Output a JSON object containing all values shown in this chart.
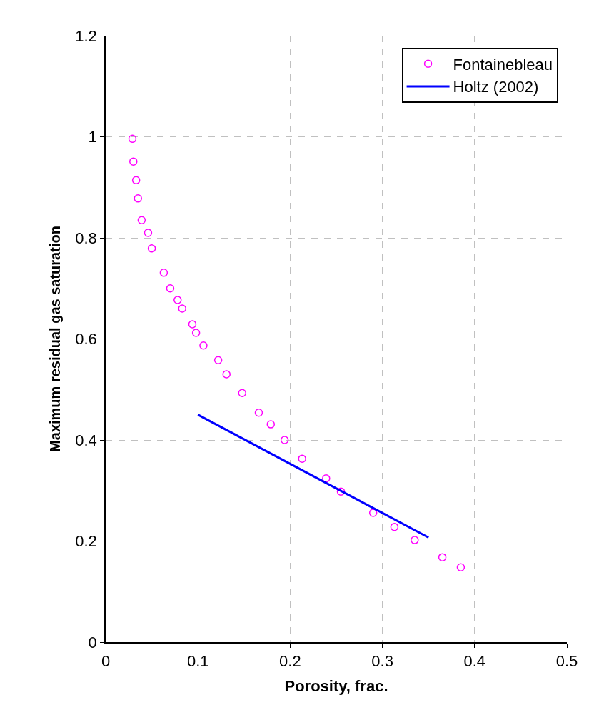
{
  "chart_data": {
    "type": "scatter",
    "xlabel": "Porosity, frac.",
    "ylabel": "Maximum residual gas saturation",
    "xlim": [
      0,
      0.5
    ],
    "xticks": [
      0,
      0.1,
      0.2,
      0.3,
      0.4,
      0.5
    ],
    "ylim": [
      0,
      1.2
    ],
    "yticks": [
      0,
      0.2,
      0.4,
      0.6,
      0.8,
      1,
      1.2
    ],
    "grid": true,
    "legend": "top right",
    "series": [
      {
        "name": "Fontainebleau",
        "color": "#ff00ff",
        "marker": "circle",
        "x": [
          0.029,
          0.03,
          0.033,
          0.035,
          0.039,
          0.046,
          0.05,
          0.063,
          0.07,
          0.078,
          0.083,
          0.094,
          0.098,
          0.106,
          0.122,
          0.131,
          0.148,
          0.166,
          0.179,
          0.194,
          0.213,
          0.239,
          0.255,
          0.29,
          0.313,
          0.335,
          0.365,
          0.385
        ],
        "values": [
          0.996,
          0.951,
          0.914,
          0.878,
          0.835,
          0.81,
          0.779,
          0.731,
          0.7,
          0.677,
          0.66,
          0.629,
          0.612,
          0.587,
          0.558,
          0.53,
          0.493,
          0.454,
          0.431,
          0.4,
          0.363,
          0.324,
          0.298,
          0.256,
          0.228,
          0.202,
          0.168,
          0.148
        ]
      },
      {
        "name": "Holtz (2002)",
        "type": "line",
        "color": "#0000ff",
        "line_style": "solid",
        "x": [
          0.1,
          0.35
        ],
        "values": [
          0.45,
          0.207
        ]
      }
    ]
  }
}
